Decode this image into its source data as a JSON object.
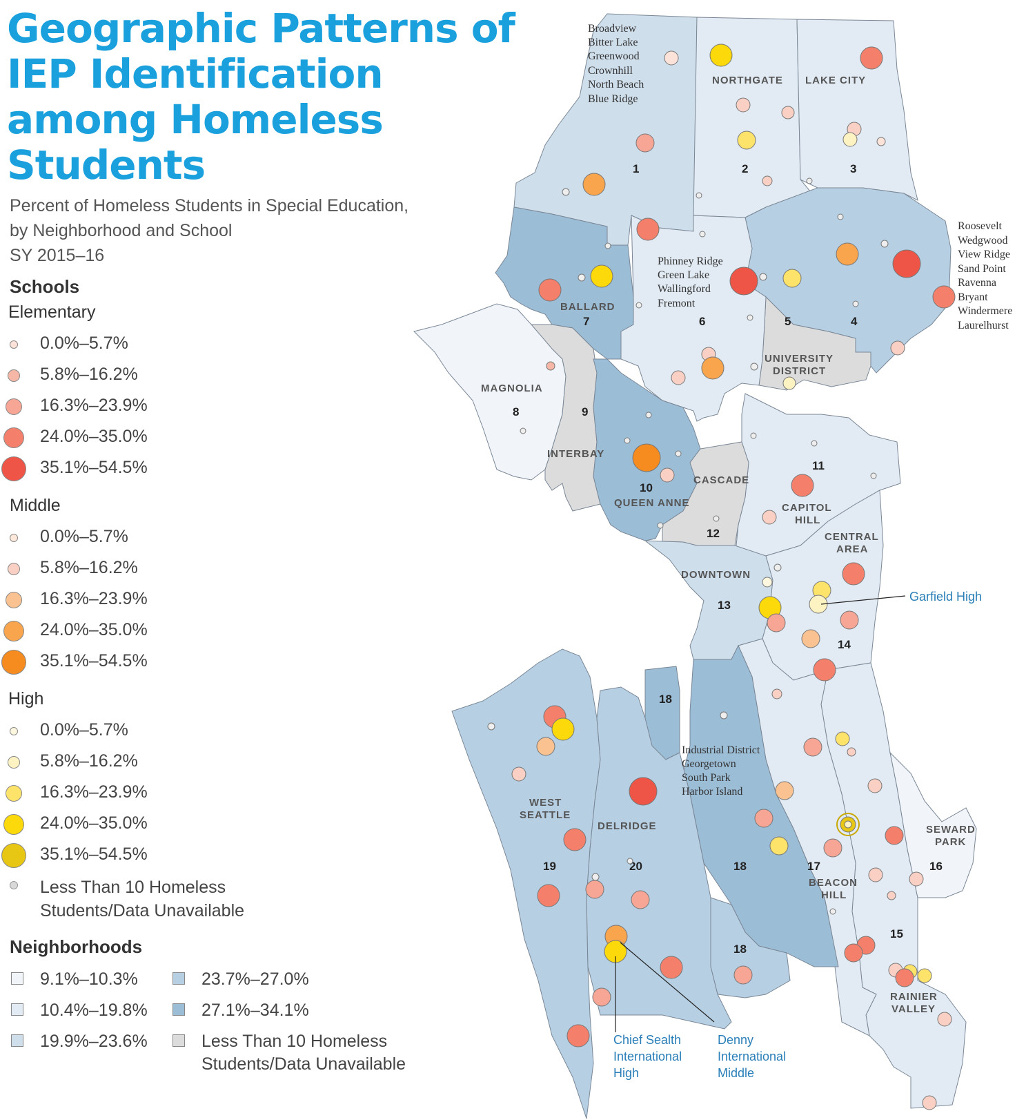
{
  "title": "Geographic Patterns of IEP Identification among Homeless Students",
  "subtitle": [
    "Percent of Homeless Students in Special Education,",
    "by Neighborhood and School",
    "SY 2015–16"
  ],
  "legend": {
    "schools_heading": "Schools",
    "elementary_heading": "Elementary",
    "middle_heading": "Middle",
    "high_heading": "High",
    "ranges": [
      "0.0%–5.7%",
      "5.8%–16.2%",
      "16.3%–23.9%",
      "24.0%–35.0%",
      "35.1%–54.5%"
    ],
    "unavailable": [
      "Less Than 10 Homeless",
      "Students/Data Unavailable"
    ],
    "colors": {
      "elementary": [
        "#fbe3da",
        "#f6b7a6",
        "#f7a696",
        "#f4806c",
        "#ef5547"
      ],
      "middle": [
        "#fde8d9",
        "#f9d0c3",
        "#f9c290",
        "#f8a54e",
        "#f68b20"
      ],
      "high": [
        "#fef7e0",
        "#fdf3c2",
        "#fde36a",
        "#fcd90a",
        "#e8c614"
      ],
      "unavailable": "#d9d9d9"
    },
    "neighborhoods_heading": "Neighborhoods",
    "neighborhood_ranges": [
      "9.1%–10.3%",
      "10.4%–19.8%",
      "19.9%–23.6%",
      "23.7%–27.0%",
      "27.1%–34.1%"
    ],
    "neighborhood_unavailable": [
      "Less Than 10 Homeless",
      "Students/Data Unavailable"
    ],
    "neighborhood_colors": [
      "#f1f5f9",
      "#e2ebf3",
      "#cfdeeb",
      "#b6cfe2",
      "#9cbdd6",
      "#dcdcdc"
    ]
  },
  "map": {
    "neighborhood_names": [
      "NORTHGATE",
      "LAKE CITY",
      "BALLARD",
      "MAGNOLIA",
      "INTERBAY",
      "UNIVERSITY",
      "DISTRICT",
      "QUEEN ANNE",
      "CASCADE",
      "CAPITOL",
      "HILL",
      "CENTRAL",
      "AREA",
      "DOWNTOWN",
      "WEST",
      "SEATTLE",
      "DELRIDGE",
      "BEACON",
      "HILL",
      "SEWARD",
      "PARK",
      "RAINIER",
      "VALLEY"
    ],
    "district_numbers": [
      "1",
      "2",
      "3",
      "4",
      "5",
      "6",
      "7",
      "8",
      "9",
      "10",
      "11",
      "12",
      "13",
      "14",
      "15",
      "16",
      "17",
      "18",
      "18",
      "18",
      "19",
      "20"
    ],
    "area_lists": {
      "north_1": [
        "Broadview",
        "Bitter Lake",
        "Greenwood",
        "Crownhill",
        "North Beach",
        "Blue Ridge"
      ],
      "area_6": [
        "Phinney Ridge",
        "Green Lake",
        "Wallingford",
        "Fremont"
      ],
      "area_4": [
        "Roosevelt",
        "Wedgwood",
        "View Ridge",
        "Sand Point",
        "Ravenna",
        "Bryant",
        "Windermere",
        "Laurelhurst"
      ],
      "area_18": [
        "Industrial District",
        "Georgetown",
        "South Park",
        "Harbor Island"
      ]
    },
    "callouts": {
      "garfield": "Garfield High",
      "chief_sealth": [
        "Chief Sealth",
        "International",
        "High"
      ],
      "denny": [
        "Denny",
        "International",
        "Middle"
      ]
    }
  }
}
